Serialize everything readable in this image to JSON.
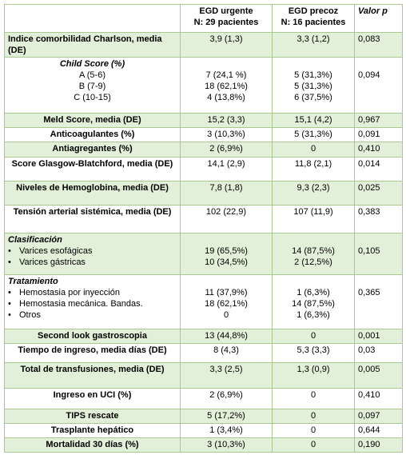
{
  "table": {
    "header": {
      "urgente": [
        "EGD urgente",
        "N: 29 pacientes"
      ],
      "precoz": [
        "EGD precoz",
        "N: 16 pacientes"
      ],
      "p": "Valor p"
    },
    "rows": [
      {
        "label": "Indice comorbilidad Charlson, media (DE)",
        "urgente": "3,9 (1,3)",
        "precoz": "3,3 (1,2)",
        "p": "0,083"
      },
      {
        "label": "Child Score (%)",
        "items": [
          "A (5-6)",
          "B (7-9)",
          "C (10-15)"
        ],
        "urgente": [
          "7 (24,1 %)",
          "18 (62,1%)",
          "4 (13,8%)"
        ],
        "precoz": [
          "5 (31,3%)",
          "5 (31,3%)",
          "6 (37,5%)"
        ],
        "p": "0,094"
      },
      {
        "label": "Meld Score, media (DE)",
        "urgente": "15,2 (3,3)",
        "precoz": "15,1 (4,2)",
        "p": "0,967"
      },
      {
        "label": "Anticoagulantes (%)",
        "urgente": "3 (10,3%)",
        "precoz": "5 (31,3%)",
        "p": "0,091"
      },
      {
        "label": "Antiagregantes (%)",
        "urgente": "2 (6,9%)",
        "precoz": "0",
        "p": "0,410"
      },
      {
        "label": "Score Glasgow-Blatchford, media (DE)",
        "urgente": "14,1 (2,9)",
        "precoz": "11,8 (2,1)",
        "p": "0,014"
      },
      {
        "label": "Niveles de Hemoglobina, media (DE)",
        "urgente": "7,8 (1,8)",
        "precoz": "9,3 (2,3)",
        "p": "0,025"
      },
      {
        "label": "Tensión arterial sistémica, media (DE)",
        "urgente": "102 (22,9)",
        "precoz": "107 (11,9)",
        "p": "0,383"
      },
      {
        "label": "Clasificación",
        "items": [
          "Varices esofágicas",
          "Varices gástricas"
        ],
        "urgente": [
          "19 (65,5%)",
          "10 (34,5%)"
        ],
        "precoz": [
          "14 (87,5%)",
          "2 (12,5%)"
        ],
        "p": "0,105"
      },
      {
        "label": "Tratamiento",
        "items": [
          "Hemostasia por inyección",
          "Hemostasia mecánica. Bandas.",
          "Otros"
        ],
        "urgente": [
          "11 (37,9%)",
          "18 (62,1%)",
          "0"
        ],
        "precoz": [
          "1 (6,3%)",
          "14 (87,5%)",
          "1 (6,3%)"
        ],
        "p": "0,365"
      },
      {
        "label": "Second look gastroscopia",
        "urgente": "13 (44,8%)",
        "precoz": "0",
        "p": "0,001"
      },
      {
        "label": "Tiempo de ingreso, media días (DE)",
        "urgente": "8 (4,3)",
        "precoz": "5,3 (3,3)",
        "p": "0,03"
      },
      {
        "label": "Total de transfusiones, media (DE)",
        "urgente": "3,3 (2,5)",
        "precoz": "1,3 (0,9)",
        "p": "0,005"
      },
      {
        "label": "Ingreso en UCI (%)",
        "urgente": "2 (6,9%)",
        "precoz": "0",
        "p": "0,410"
      },
      {
        "label": "TIPS rescate",
        "urgente": "5 (17,2%)",
        "precoz": "0",
        "p": "0,097"
      },
      {
        "label": "Trasplante hepático",
        "urgente": "1 (3,4%)",
        "precoz": "0",
        "p": "0,644"
      },
      {
        "label": "Mortalidad 30 días (%)",
        "urgente": "3 (10,3%)",
        "precoz": "0",
        "p": "0,190"
      }
    ]
  }
}
